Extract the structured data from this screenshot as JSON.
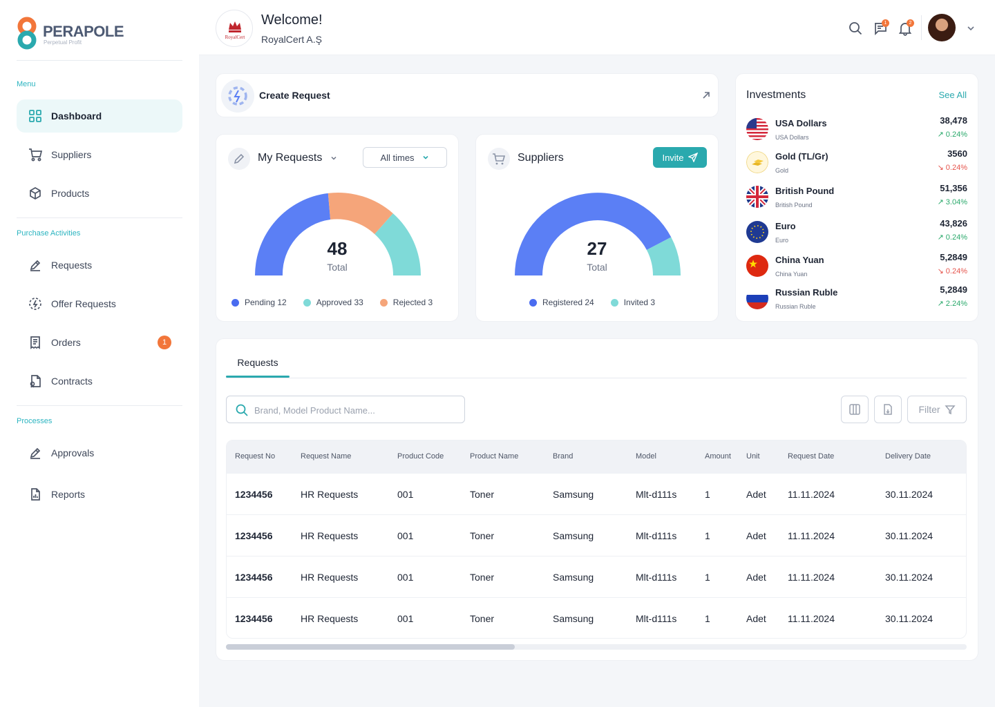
{
  "brand": {
    "name": "PERAPOLE",
    "tagline": "Perpetual Profit"
  },
  "sidebar": {
    "sections": {
      "menu": "Menu",
      "purchase": "Purchase Activities",
      "processes": "Processes"
    },
    "items": [
      {
        "label": "Dashboard",
        "icon": "dashboard-icon",
        "active": true
      },
      {
        "label": "Suppliers",
        "icon": "cart-icon"
      },
      {
        "label": "Products",
        "icon": "box-icon"
      },
      {
        "label": "Requests",
        "icon": "pen-icon"
      },
      {
        "label": "Offer Requests",
        "icon": "offer-icon"
      },
      {
        "label": "Orders",
        "icon": "receipt-icon",
        "badge": "1"
      },
      {
        "label": "Contracts",
        "icon": "contract-icon"
      },
      {
        "label": "Approvals",
        "icon": "pen-icon"
      },
      {
        "label": "Reports",
        "icon": "report-icon"
      }
    ]
  },
  "header": {
    "company_logo_text": "RoyalCert",
    "welcome": "Welcome!",
    "company": "RoyalCert A.Ş",
    "messages_count": "1",
    "notifications_count": "2"
  },
  "create_request": {
    "label": "Create Request"
  },
  "my_requests": {
    "title": "My Requests",
    "filter": "All times",
    "total": "48",
    "total_label": "Total",
    "legend": [
      {
        "label": "Pending 12",
        "color": "#5b7ff5"
      },
      {
        "label": "Approved 33",
        "color": "#7fdad8"
      },
      {
        "label": "Rejected 3",
        "color": "#f5a57a"
      }
    ]
  },
  "suppliers": {
    "title": "Suppliers",
    "invite": "Invite",
    "total": "27",
    "total_label": "Total",
    "legend": [
      {
        "label": "Registered 24",
        "color": "#5b7ff5"
      },
      {
        "label": "Invited 3",
        "color": "#7fdad8"
      }
    ]
  },
  "investments": {
    "title": "Investments",
    "see_all": "See All",
    "items": [
      {
        "name": "USA Dollars",
        "sub": "USA Dollars",
        "value": "38,478",
        "change": "0.24%",
        "trend": "up",
        "icon": "us-flag-icon"
      },
      {
        "name": "Gold (TL/Gr)",
        "sub": "Gold",
        "value": "3560",
        "change": "0.24%",
        "trend": "down",
        "icon": "gold-icon"
      },
      {
        "name": "British Pound",
        "sub": "British Pound",
        "value": "51,356",
        "change": "3.04%",
        "trend": "up",
        "icon": "uk-flag-icon"
      },
      {
        "name": "Euro",
        "sub": "Euro",
        "value": "43,826",
        "change": "0.24%",
        "trend": "up",
        "icon": "eu-flag-icon"
      },
      {
        "name": "China Yuan",
        "sub": "China Yuan",
        "value": "5,2849",
        "change": "0.24%",
        "trend": "down",
        "icon": "cn-flag-icon"
      },
      {
        "name": "Russian Ruble",
        "sub": "Russian Ruble",
        "value": "5,2849",
        "change": "2.24%",
        "trend": "up",
        "icon": "ru-flag-icon"
      }
    ]
  },
  "requests_table": {
    "tab": "Requests",
    "search_placeholder": "Brand, Model Product Name...",
    "filter_label": "Filter",
    "columns": [
      "Request No",
      "Request Name",
      "Product Code",
      "Product Name",
      "Brand",
      "Model",
      "Amount",
      "Unit",
      "Request Date",
      "Delivery Date"
    ],
    "rows": [
      [
        "1234456",
        "HR Requests",
        "001",
        "Toner",
        "Samsung",
        "Mlt-d111s",
        "1",
        "Adet",
        "11.11.2024",
        "30.11.2024"
      ],
      [
        "1234456",
        "HR Requests",
        "001",
        "Toner",
        "Samsung",
        "Mlt-d111s",
        "1",
        "Adet",
        "11.11.2024",
        "30.11.2024"
      ],
      [
        "1234456",
        "HR Requests",
        "001",
        "Toner",
        "Samsung",
        "Mlt-d111s",
        "1",
        "Adet",
        "11.11.2024",
        "30.11.2024"
      ],
      [
        "1234456",
        "HR Requests",
        "001",
        "Toner",
        "Samsung",
        "Mlt-d111s",
        "1",
        "Adet",
        "11.11.2024",
        "30.11.2024"
      ]
    ]
  },
  "colors": {
    "accent": "#2aa9ae",
    "blue": "#5b7ff5",
    "teal": "#7fdad8",
    "orange": "#f5a57a",
    "badge": "#f2763a"
  }
}
